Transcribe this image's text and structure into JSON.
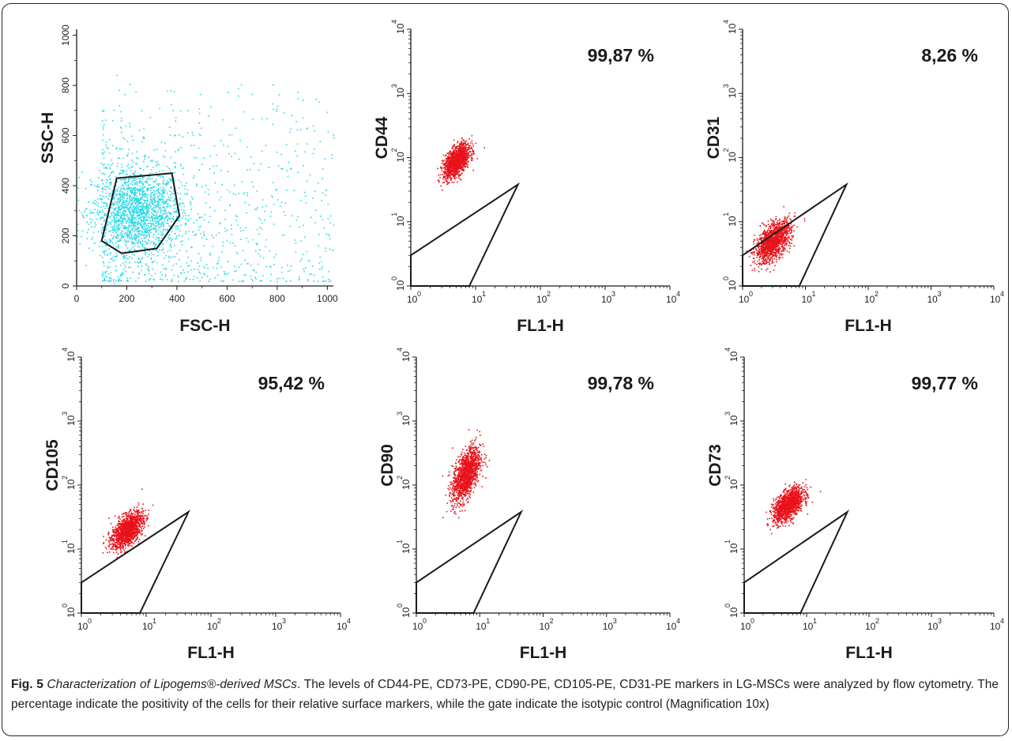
{
  "caption": {
    "label": "Fig. 5",
    "title": "Characterization of Lipogems®-derived MSCs",
    "text": ". The levels of CD44-PE, CD73-PE, CD90-PE, CD105-PE, CD31-PE markers in LG-MSCs were analyzed by flow cytometry. The percentage indicate the positivity of the cells for their relative surface markers, while the gate indicate the isotypic control (Magnification 10x)"
  },
  "colors": {
    "scatter_cyan": "#29d9e6",
    "events_red": "#e8121a",
    "gate_line": "#1a1a1a"
  },
  "chart_data": [
    {
      "type": "scatter",
      "xlabel": "FSC-H",
      "ylabel": "SSC-H",
      "scale": "linear",
      "xlim": [
        0,
        1024
      ],
      "ylim": [
        0,
        1024
      ],
      "xticks": [
        0,
        200,
        400,
        600,
        800,
        1000
      ],
      "yticks": [
        0,
        200,
        400,
        600,
        800,
        1000
      ],
      "color": "#29d9e6",
      "population": {
        "center": [
          240,
          300
        ],
        "spread": [
          90,
          85
        ],
        "count": 1700
      },
      "background_events": {
        "xrange": [
          100,
          1024
        ],
        "yrange": [
          20,
          850
        ],
        "count": 900
      },
      "gate": [
        [
          100,
          180
        ],
        [
          160,
          430
        ],
        [
          380,
          450
        ],
        [
          410,
          280
        ],
        [
          320,
          150
        ],
        [
          180,
          130
        ]
      ],
      "annotation": ""
    },
    {
      "type": "scatter",
      "xlabel": "FL1-H",
      "ylabel": "CD44",
      "scale": "log",
      "xlim": [
        1,
        10000
      ],
      "ylim": [
        1,
        10000
      ],
      "color": "#e8121a",
      "population": {
        "center": [
          5,
          90
        ],
        "spread_decades": [
          0.1,
          0.13
        ],
        "count": 1300
      },
      "gate": [
        [
          1,
          1
        ],
        [
          1,
          3
        ],
        [
          45,
          38
        ],
        [
          8,
          1
        ]
      ],
      "annotation": "99,87 %"
    },
    {
      "type": "scatter",
      "xlabel": "FL1-H",
      "ylabel": "CD31",
      "scale": "log",
      "xlim": [
        1,
        10000
      ],
      "ylim": [
        1,
        10000
      ],
      "color": "#e8121a",
      "population": {
        "center": [
          3,
          5
        ],
        "spread_decades": [
          0.14,
          0.16
        ],
        "count": 1300
      },
      "gate": [
        [
          1,
          1
        ],
        [
          1,
          3
        ],
        [
          45,
          38
        ],
        [
          8,
          1
        ]
      ],
      "annotation": "8,26 %"
    },
    {
      "type": "scatter",
      "xlabel": "FL1-H",
      "ylabel": "CD105",
      "scale": "log",
      "xlim": [
        1,
        10000
      ],
      "ylim": [
        1,
        10000
      ],
      "color": "#e8121a",
      "population": {
        "center": [
          5,
          20
        ],
        "spread_decades": [
          0.12,
          0.14
        ],
        "count": 1300
      },
      "gate": [
        [
          1,
          1
        ],
        [
          1,
          3
        ],
        [
          45,
          38
        ],
        [
          8,
          1
        ]
      ],
      "annotation": "95,42 %"
    },
    {
      "type": "scatter",
      "xlabel": "FL1-H",
      "ylabel": "CD90",
      "scale": "log",
      "xlim": [
        1,
        10000
      ],
      "ylim": [
        1,
        10000
      ],
      "color": "#e8121a",
      "population": {
        "center": [
          6,
          150
        ],
        "spread_decades": [
          0.11,
          0.22
        ],
        "count": 1300
      },
      "gate": [
        [
          1,
          1
        ],
        [
          1,
          3
        ],
        [
          45,
          38
        ],
        [
          8,
          1
        ]
      ],
      "annotation": "99,78 %"
    },
    {
      "type": "scatter",
      "xlabel": "FL1-H",
      "ylabel": "CD73",
      "scale": "log",
      "xlim": [
        1,
        10000
      ],
      "ylim": [
        1,
        10000
      ],
      "color": "#e8121a",
      "population": {
        "center": [
          5,
          50
        ],
        "spread_decades": [
          0.12,
          0.13
        ],
        "count": 1300
      },
      "gate": [
        [
          1,
          1
        ],
        [
          1,
          3
        ],
        [
          45,
          38
        ],
        [
          8,
          1
        ]
      ],
      "annotation": "99,77 %"
    }
  ]
}
